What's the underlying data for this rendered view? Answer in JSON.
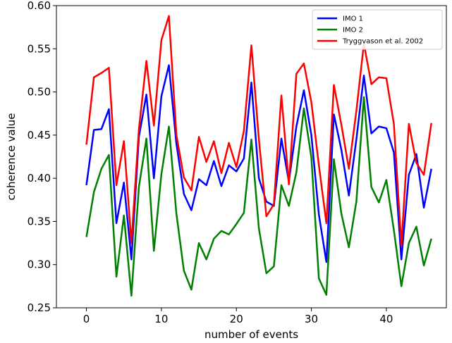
{
  "chart_data": {
    "type": "line",
    "title": "",
    "xlabel": "number of events",
    "ylabel": "coherence value",
    "xlim": [
      -4,
      48
    ],
    "ylim": [
      0.25,
      0.6
    ],
    "xticks": [
      0,
      10,
      20,
      30,
      40
    ],
    "yticks": [
      0.25,
      0.3,
      0.35,
      0.4,
      0.45,
      0.5,
      0.55,
      0.6
    ],
    "xtick_labels": [
      "0",
      "10",
      "20",
      "30",
      "40"
    ],
    "ytick_labels": [
      "0.25",
      "0.30",
      "0.35",
      "0.40",
      "0.45",
      "0.50",
      "0.55",
      "0.60"
    ],
    "grid": false,
    "legend_position": "top-right",
    "x": [
      0,
      1,
      2,
      3,
      4,
      5,
      6,
      7,
      8,
      9,
      10,
      11,
      12,
      13,
      14,
      15,
      16,
      17,
      18,
      19,
      20,
      21,
      22,
      23,
      24,
      25,
      26,
      27,
      28,
      29,
      30,
      31,
      32,
      33,
      34,
      35,
      36,
      37,
      38,
      39,
      40,
      41,
      42,
      43,
      44,
      45,
      46
    ],
    "series": [
      {
        "name": "IMO 1",
        "color": "#0000ff",
        "values": [
          0.392,
          0.456,
          0.457,
          0.48,
          0.348,
          0.395,
          0.306,
          0.448,
          0.497,
          0.4,
          0.495,
          0.531,
          0.44,
          0.382,
          0.363,
          0.399,
          0.392,
          0.42,
          0.391,
          0.415,
          0.408,
          0.423,
          0.511,
          0.4,
          0.373,
          0.368,
          0.446,
          0.396,
          0.46,
          0.502,
          0.45,
          0.358,
          0.303,
          0.474,
          0.433,
          0.38,
          0.445,
          0.519,
          0.452,
          0.46,
          0.458,
          0.43,
          0.306,
          0.404,
          0.428,
          0.366,
          0.411
        ]
      },
      {
        "name": "IMO 2",
        "color": "#008000",
        "values": [
          0.332,
          0.384,
          0.411,
          0.427,
          0.286,
          0.357,
          0.264,
          0.39,
          0.446,
          0.316,
          0.405,
          0.46,
          0.359,
          0.293,
          0.271,
          0.325,
          0.306,
          0.33,
          0.339,
          0.335,
          0.347,
          0.36,
          0.445,
          0.342,
          0.29,
          0.298,
          0.392,
          0.368,
          0.407,
          0.481,
          0.424,
          0.284,
          0.265,
          0.422,
          0.359,
          0.32,
          0.373,
          0.494,
          0.39,
          0.372,
          0.398,
          0.34,
          0.275,
          0.325,
          0.344,
          0.299,
          0.33
        ]
      },
      {
        "name": "Tryggvason et al. 2002",
        "color": "#ff0000",
        "values": [
          0.439,
          0.517,
          0.522,
          0.528,
          0.392,
          0.443,
          0.325,
          0.457,
          0.536,
          0.461,
          0.56,
          0.588,
          0.45,
          0.401,
          0.386,
          0.448,
          0.419,
          0.443,
          0.406,
          0.441,
          0.413,
          0.455,
          0.554,
          0.445,
          0.356,
          0.37,
          0.496,
          0.393,
          0.521,
          0.533,
          0.488,
          0.415,
          0.348,
          0.508,
          0.462,
          0.411,
          0.478,
          0.556,
          0.509,
          0.517,
          0.516,
          0.463,
          0.322,
          0.463,
          0.418,
          0.404,
          0.464
        ]
      }
    ]
  }
}
